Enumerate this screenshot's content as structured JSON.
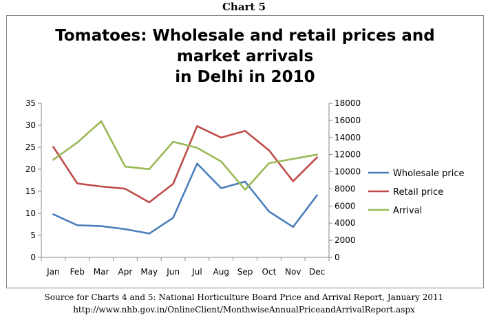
{
  "caption": "Chart 5",
  "source": {
    "line1": "Source for Charts 4 and 5: National Horticulture Board Price and Arrival Report, January 2011",
    "line2": "http://www.nhb.gov.in/OnlineClient/MonthwiseAnnualPriceandArrivalReport.aspx"
  },
  "chart_data": {
    "type": "line",
    "title_lines": [
      "Tomatoes: Wholesale and retail prices and",
      "market arrivals",
      "in Delhi in 2010"
    ],
    "categories": [
      "Jan",
      "Feb",
      "Mar",
      "Apr",
      "May",
      "Jun",
      "Jul",
      "Aug",
      "Sep",
      "Oct",
      "Nov",
      "Dec"
    ],
    "y_left": {
      "ylim": [
        0,
        35
      ],
      "ticks": [
        0,
        5,
        10,
        15,
        20,
        25,
        30,
        35
      ]
    },
    "y_right": {
      "ylim": [
        0,
        18000
      ],
      "ticks": [
        0,
        2000,
        4000,
        6000,
        8000,
        10000,
        12000,
        14000,
        16000,
        18000
      ]
    },
    "grid": false,
    "legend_placement": "right",
    "series": [
      {
        "name": "Wholesale price",
        "axis": "left",
        "color": "#4a7ebb",
        "values": [
          9.8,
          7.3,
          7.1,
          6.4,
          5.4,
          9.0,
          21.3,
          15.7,
          17.2,
          10.4,
          6.9,
          14.1
        ]
      },
      {
        "name": "Retail price",
        "axis": "left",
        "color": "#be4b48",
        "values": [
          25.1,
          16.8,
          16.1,
          15.6,
          12.5,
          16.7,
          29.8,
          27.2,
          28.7,
          24.3,
          17.3,
          22.7
        ]
      },
      {
        "name": "Arrival",
        "axis": "right",
        "color": "#98b954",
        "values": [
          11400,
          13400,
          15900,
          10600,
          10300,
          13500,
          12800,
          11200,
          7900,
          11000,
          11500,
          12000
        ]
      }
    ]
  }
}
